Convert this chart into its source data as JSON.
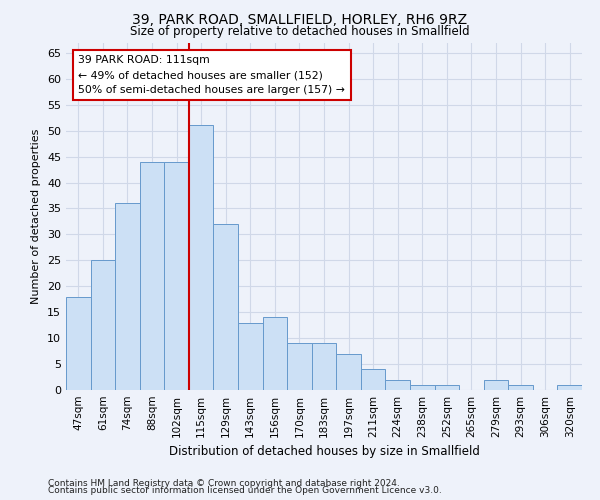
{
  "title1": "39, PARK ROAD, SMALLFIELD, HORLEY, RH6 9RZ",
  "title2": "Size of property relative to detached houses in Smallfield",
  "xlabel": "Distribution of detached houses by size in Smallfield",
  "ylabel": "Number of detached properties",
  "categories": [
    "47sqm",
    "61sqm",
    "74sqm",
    "88sqm",
    "102sqm",
    "115sqm",
    "129sqm",
    "143sqm",
    "156sqm",
    "170sqm",
    "183sqm",
    "197sqm",
    "211sqm",
    "224sqm",
    "238sqm",
    "252sqm",
    "265sqm",
    "279sqm",
    "293sqm",
    "306sqm",
    "320sqm"
  ],
  "values": [
    18,
    25,
    36,
    44,
    44,
    51,
    32,
    13,
    14,
    9,
    9,
    7,
    4,
    2,
    1,
    1,
    0,
    2,
    1,
    0,
    1
  ],
  "bar_color": "#cce0f5",
  "bar_edge_color": "#6699cc",
  "vline_x": 5,
  "vline_color": "#cc0000",
  "annotation_line1": "39 PARK ROAD: 111sqm",
  "annotation_line2": "← 49% of detached houses are smaller (152)",
  "annotation_line3": "50% of semi-detached houses are larger (157) →",
  "annotation_box_color": "#ffffff",
  "annotation_box_edge": "#cc0000",
  "ylim": [
    0,
    67
  ],
  "yticks": [
    0,
    5,
    10,
    15,
    20,
    25,
    30,
    35,
    40,
    45,
    50,
    55,
    60,
    65
  ],
  "grid_color": "#d0d8e8",
  "footnote1": "Contains HM Land Registry data © Crown copyright and database right 2024.",
  "footnote2": "Contains public sector information licensed under the Open Government Licence v3.0.",
  "bg_color": "#eef2fa"
}
